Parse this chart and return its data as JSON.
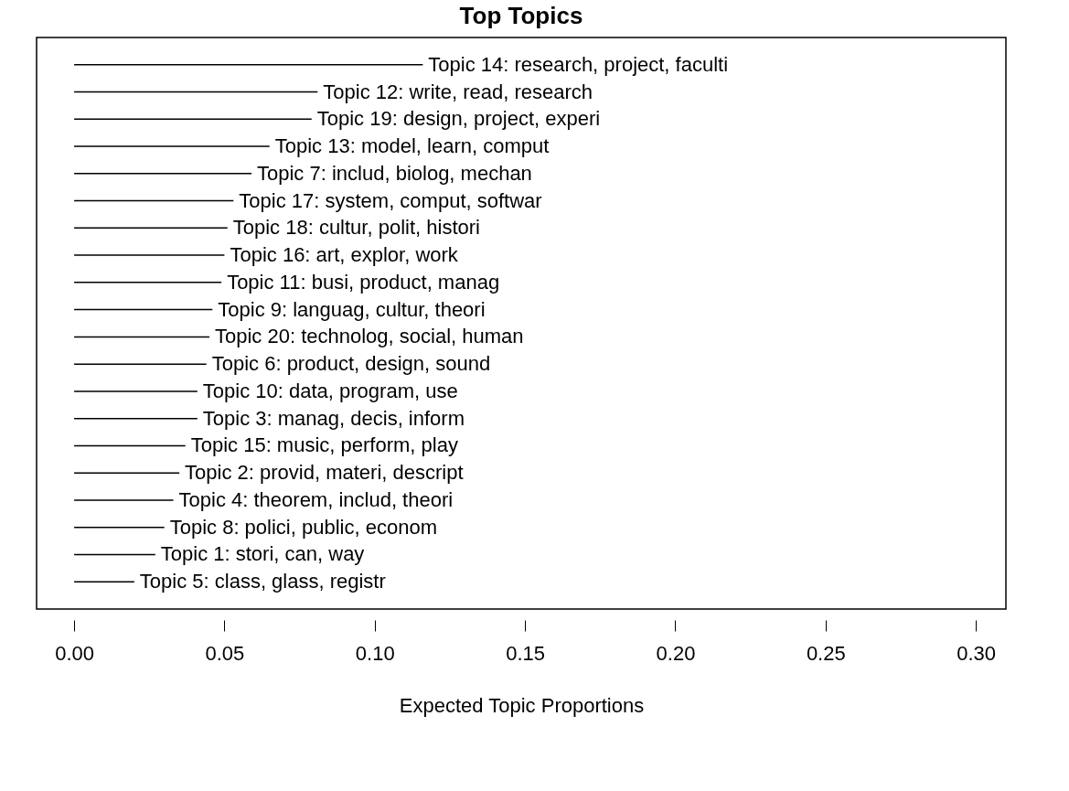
{
  "chart_data": {
    "type": "bar",
    "orientation": "horizontal",
    "title": "Top Topics",
    "xlabel": "Expected Topic Proportions",
    "categories": [
      "Topic 14: research, project, faculti",
      "Topic 12: write, read, research",
      "Topic 19: design, project, experi",
      "Topic 13: model, learn, comput",
      "Topic 7: includ, biolog, mechan",
      "Topic 17: system, comput, softwar",
      "Topic 18: cultur, polit, histori",
      "Topic 16: art, explor, work",
      "Topic 11: busi, product, manag",
      "Topic 9: languag, cultur, theori",
      "Topic 20: technolog, social, human",
      "Topic 6: product, design, sound",
      "Topic 10: data, program, use",
      "Topic 3: manag, decis, inform",
      "Topic 15: music, perform, play",
      "Topic 2: provid, materi, descript",
      "Topic 4: theorem, includ, theori",
      "Topic 8: polici, public, econom",
      "Topic 1: stori, can, way",
      "Topic 5: class, glass, registr"
    ],
    "values": [
      0.116,
      0.081,
      0.079,
      0.065,
      0.059,
      0.053,
      0.051,
      0.05,
      0.049,
      0.046,
      0.045,
      0.044,
      0.041,
      0.041,
      0.037,
      0.035,
      0.033,
      0.03,
      0.027,
      0.02
    ],
    "color": "#000000",
    "xlim": [
      -0.0125,
      0.31
    ],
    "xticks": [
      {
        "value": 0,
        "label": "0.00"
      },
      {
        "value": 0.05,
        "label": "0.05"
      },
      {
        "value": 0.1,
        "label": "0.10"
      },
      {
        "value": 0.15,
        "label": "0.15"
      },
      {
        "value": 0.2,
        "label": "0.20"
      },
      {
        "value": 0.25,
        "label": "0.25"
      },
      {
        "value": 0.3,
        "label": "0.30"
      }
    ],
    "tick_labels": "x",
    "grid": false
  }
}
